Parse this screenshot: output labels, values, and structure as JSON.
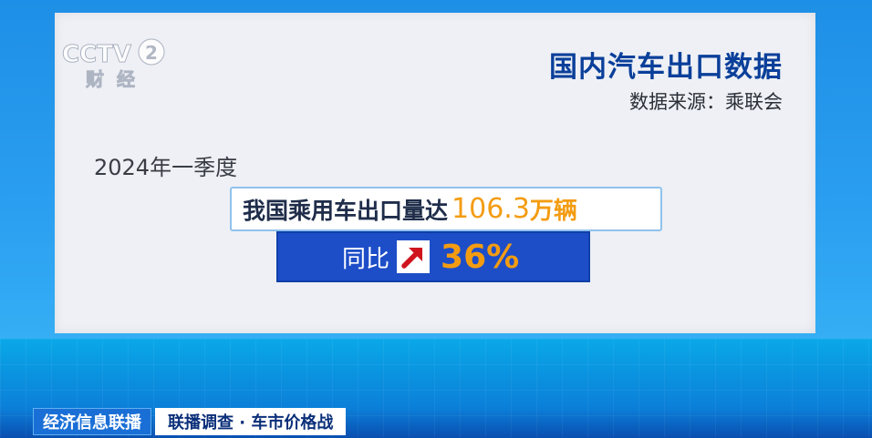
{
  "logo": {
    "channel": "CCTV",
    "number": "2",
    "subtitle": "财经"
  },
  "header": {
    "title": "国内汽车出口数据",
    "source": "数据来源：乘联会"
  },
  "period": "2024年一季度",
  "headline": {
    "text": "我国乘用车出口量达",
    "value": "106.3",
    "unit": "万辆"
  },
  "yoy": {
    "label": "同比",
    "value": "36%",
    "arrow_icon": "arrow-up-right-icon"
  },
  "ticker": {
    "program": "经济信息联播",
    "topic": "联播调查 · 车市价格战"
  },
  "colors": {
    "title": "#0a3f9a",
    "accent": "#f39c12",
    "box_blue": "#1d4ec8",
    "arrow_red": "#d0141e"
  }
}
